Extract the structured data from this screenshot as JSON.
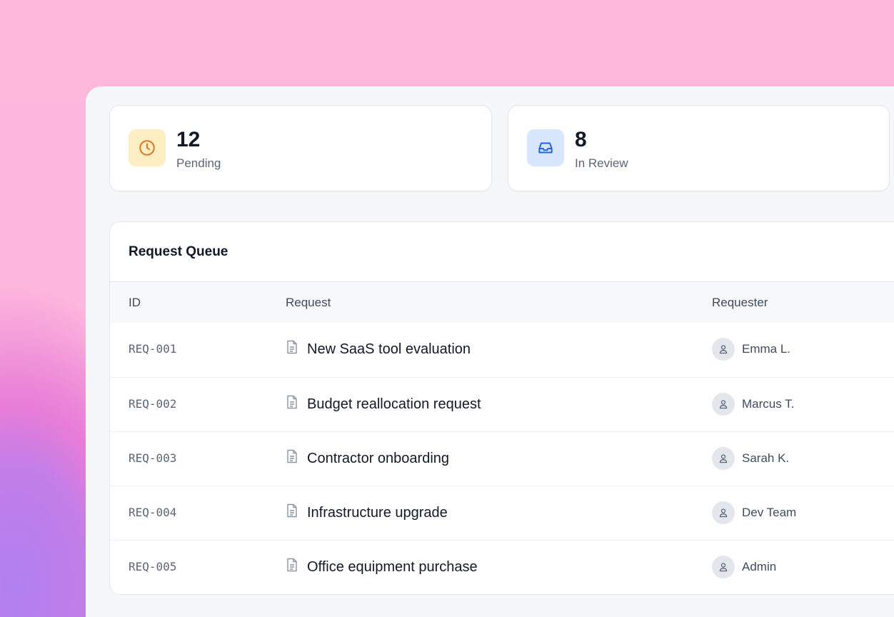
{
  "stats": [
    {
      "value": "12",
      "label": "Pending",
      "icon": "clock-icon",
      "icon_bg": "#fdefc3",
      "icon_color": "#e0731f"
    },
    {
      "value": "8",
      "label": "In Review",
      "icon": "inbox-icon",
      "icon_bg": "#d8e7fd",
      "icon_color": "#2563eb"
    }
  ],
  "queue": {
    "title": "Request Queue",
    "columns": [
      "ID",
      "Request",
      "Requester"
    ],
    "rows": [
      {
        "id": "REQ-001",
        "request": "New SaaS tool evaluation",
        "requester": "Emma L."
      },
      {
        "id": "REQ-002",
        "request": "Budget reallocation request",
        "requester": "Marcus T."
      },
      {
        "id": "REQ-003",
        "request": "Contractor onboarding",
        "requester": "Sarah K."
      },
      {
        "id": "REQ-004",
        "request": "Infrastructure upgrade",
        "requester": "Dev Team"
      },
      {
        "id": "REQ-005",
        "request": "Office equipment purchase",
        "requester": "Admin"
      }
    ]
  }
}
